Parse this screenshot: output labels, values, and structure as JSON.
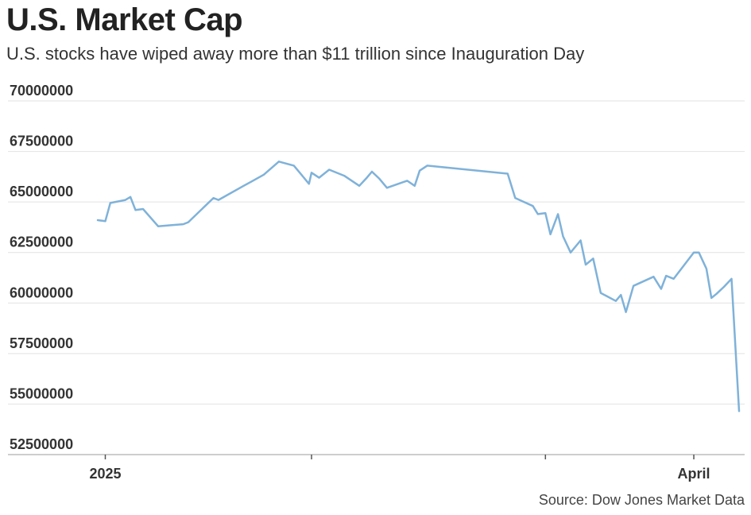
{
  "chart_data": {
    "type": "line",
    "title": "U.S. Market Cap",
    "subtitle": "U.S. stocks have wiped away more than $11 trillion since Inauguration Day",
    "source": "Source: Dow Jones Market Data",
    "xlabel": "",
    "ylabel": "",
    "ylim": [
      52500000,
      70000000
    ],
    "yticks": [
      "70000000",
      "67500000",
      "65000000",
      "62500000",
      "60000000",
      "57500000",
      "55000000",
      "52500000"
    ],
    "xticks": [
      {
        "label": "2025",
        "index": 1
      },
      {
        "label": "",
        "index": 19
      },
      {
        "label": "",
        "index": 36
      },
      {
        "label": "April",
        "index": 53
      }
    ],
    "grid": true,
    "color": "#7fb2d9",
    "series": [
      {
        "name": "U.S. Market Cap",
        "values": [
          64100000,
          64050000,
          64950000,
          65100000,
          65250000,
          64600000,
          64650000,
          63800000,
          63850000,
          63900000,
          64000000,
          65200000,
          65100000,
          65800000,
          66000000,
          66350000,
          67000000,
          66800000,
          65900000,
          66450000,
          66200000,
          66600000,
          66300000,
          65800000,
          66200000,
          66500000,
          66150000,
          65700000,
          66050000,
          65800000,
          66550000,
          66800000,
          66400000,
          65200000,
          64800000,
          64400000,
          64450000,
          63400000,
          64400000,
          63300000,
          62500000,
          63100000,
          61900000,
          62200000,
          60500000,
          60100000,
          60400000,
          59550000,
          60850000,
          61300000,
          60700000,
          61350000,
          61200000,
          62500000,
          62500000,
          61700000,
          60250000,
          60450000,
          60800000,
          61200000,
          54650000
        ],
        "x_pos": [
          0.0,
          0.3,
          0.5,
          1.1,
          1.3,
          1.5,
          1.8,
          2.4,
          2.9,
          3.4,
          3.6,
          4.6,
          4.8,
          5.8,
          6.1,
          6.6,
          7.2,
          7.8,
          8.4,
          8.5,
          8.8,
          9.2,
          9.8,
          10.4,
          10.7,
          10.9,
          11.2,
          11.5,
          12.3,
          12.6,
          12.8,
          13.1,
          16.3,
          16.6,
          17.3,
          17.5,
          17.8,
          18.0,
          18.3,
          18.5,
          18.8,
          19.2,
          19.4,
          19.7,
          20.0,
          20.6,
          20.8,
          21.0,
          21.3,
          22.1,
          22.4,
          22.6,
          22.9,
          23.7,
          23.9,
          24.2,
          24.4,
          24.6,
          24.9,
          25.2,
          25.5
        ]
      }
    ]
  }
}
